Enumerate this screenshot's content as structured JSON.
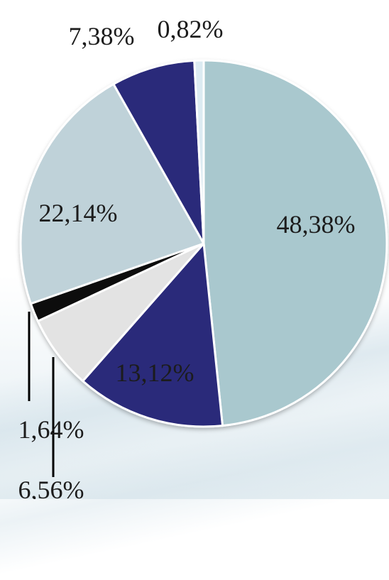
{
  "chart_data": {
    "type": "pie",
    "title": "",
    "slices": [
      {
        "label": "48,38%",
        "value": 48.38,
        "color": "#a9c8ce"
      },
      {
        "label": "13,12%",
        "value": 13.12,
        "color": "#2a2a7a"
      },
      {
        "label": "6,56%",
        "value": 6.56,
        "color": "#e3e3e3"
      },
      {
        "label": "1,64%",
        "value": 1.64,
        "color": "#0a0a0a"
      },
      {
        "label": "22,14%",
        "value": 22.14,
        "color": "#bfd2d9"
      },
      {
        "label": "7,38%",
        "value": 7.38,
        "color": "#2a2a7a"
      },
      {
        "label": "0,82%",
        "value": 0.82,
        "color": "#dcebf2"
      }
    ],
    "start_angle_deg": 0,
    "direction": "clockwise",
    "slice_border_color": "#ffffff"
  }
}
